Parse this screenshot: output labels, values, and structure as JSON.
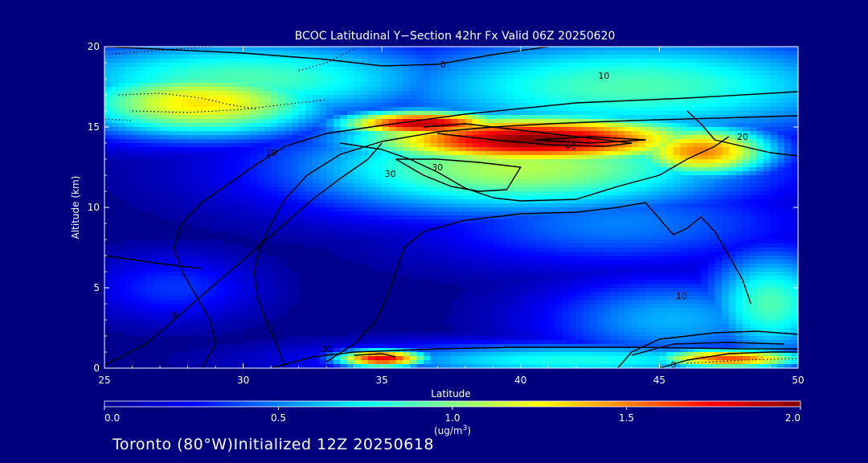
{
  "chart_data": {
    "type": "heatmap",
    "title": "BCOC Latitudinal Y−Section 42hr  Fx Valid 06Z 20250620",
    "xlabel": "Latitude",
    "ylabel": "Altitude (km)",
    "xlim": [
      25,
      50
    ],
    "ylim": [
      0,
      20
    ],
    "x_ticks": [
      25,
      30,
      35,
      40,
      45,
      50
    ],
    "y_ticks": [
      0,
      5,
      10,
      15,
      20
    ],
    "colorbar": {
      "range": [
        0.0,
        2.0
      ],
      "ticks": [
        "0.0",
        "0.5",
        "1.0",
        "1.5",
        "2.0"
      ],
      "unit_label": "(ug/m",
      "unit_sup": "3",
      "unit_close": ")",
      "colors": [
        "#00008f",
        "#0000ff",
        "#0080ff",
        "#00ffff",
        "#80ff80",
        "#ffff00",
        "#ff8000",
        "#ff0000",
        "#800000"
      ]
    },
    "color_field": {
      "description_of_features": "BCOC concentration plumes (ug/m3) vs latitude and altitude",
      "features": [
        {
          "lat": 40.5,
          "alt": 14.2,
          "value": 2.0,
          "sigma_lat": 4.5,
          "sigma_alt": 1.1
        },
        {
          "lat": 36.5,
          "alt": 15.2,
          "value": 1.9,
          "sigma_lat": 2.2,
          "sigma_alt": 0.6
        },
        {
          "lat": 46.5,
          "alt": 13.5,
          "value": 1.5,
          "sigma_lat": 2.0,
          "sigma_alt": 1.2
        },
        {
          "lat": 40.0,
          "alt": 12.5,
          "value": 1.1,
          "sigma_lat": 6.0,
          "sigma_alt": 2.2
        },
        {
          "lat": 28.5,
          "alt": 16.5,
          "value": 1.3,
          "sigma_lat": 3.5,
          "sigma_alt": 1.6
        },
        {
          "lat": 30.0,
          "alt": 18.0,
          "value": 0.9,
          "sigma_lat": 6.0,
          "sigma_alt": 2.0
        },
        {
          "lat": 44.0,
          "alt": 17.5,
          "value": 0.9,
          "sigma_lat": 7.0,
          "sigma_alt": 2.5
        },
        {
          "lat": 35.0,
          "alt": 0.6,
          "value": 1.8,
          "sigma_lat": 1.2,
          "sigma_alt": 0.4
        },
        {
          "lat": 47.5,
          "alt": 0.6,
          "value": 1.6,
          "sigma_lat": 2.0,
          "sigma_alt": 0.45
        },
        {
          "lat": 42.0,
          "alt": 0.5,
          "value": 0.8,
          "sigma_lat": 6.0,
          "sigma_alt": 0.8
        },
        {
          "lat": 49.0,
          "alt": 4.0,
          "value": 0.9,
          "sigma_lat": 1.8,
          "sigma_alt": 2.5
        },
        {
          "lat": 45.5,
          "alt": 3.0,
          "value": 0.6,
          "sigma_lat": 3.5,
          "sigma_alt": 2.0
        },
        {
          "lat": 27.5,
          "alt": 5.0,
          "value": 0.35,
          "sigma_lat": 2.2,
          "sigma_alt": 1.5
        },
        {
          "lat": 43.5,
          "alt": 9.0,
          "value": 0.5,
          "sigma_lat": 5.0,
          "sigma_alt": 2.0
        }
      ]
    },
    "contour_labels": [
      {
        "text": "0",
        "lat": 37.2,
        "alt": 18.9
      },
      {
        "text": "10",
        "lat": 43.0,
        "alt": 18.2
      },
      {
        "text": "20",
        "lat": 48.0,
        "alt": 14.4
      },
      {
        "text": "40",
        "lat": 41.8,
        "alt": 13.8
      },
      {
        "text": "30",
        "lat": 37.0,
        "alt": 12.5
      },
      {
        "text": "30",
        "lat": 35.3,
        "alt": 12.1
      },
      {
        "text": "10",
        "lat": 31.0,
        "alt": 13.4
      },
      {
        "text": "0",
        "lat": 27.5,
        "alt": 3.3
      },
      {
        "text": "10",
        "lat": 45.8,
        "alt": 4.5
      },
      {
        "text": "0",
        "lat": 45.5,
        "alt": 0.2
      },
      {
        "text": "30",
        "lat": 33.0,
        "alt": 1.2
      }
    ],
    "contours": [
      [
        [
          25,
          0.2
        ],
        [
          26.5,
          1.5
        ],
        [
          27.5,
          3
        ],
        [
          28.5,
          4.5
        ],
        [
          29.5,
          6
        ],
        [
          30.5,
          7.5
        ],
        [
          31.5,
          9
        ],
        [
          32.5,
          10.5
        ],
        [
          33.5,
          11.8
        ],
        [
          34.5,
          13
        ],
        [
          35,
          14
        ]
      ],
      [
        [
          28.5,
          0
        ],
        [
          29,
          1.5
        ],
        [
          28.8,
          3
        ],
        [
          28.3,
          4.5
        ],
        [
          27.8,
          6
        ],
        [
          27.5,
          7.5
        ],
        [
          27.8,
          9
        ],
        [
          28.5,
          10.3
        ],
        [
          29.5,
          11.5
        ],
        [
          30.5,
          12.7
        ],
        [
          31.5,
          13.8
        ],
        [
          33,
          14.6
        ],
        [
          35,
          15.1
        ],
        [
          38,
          15.8
        ],
        [
          42,
          16.5
        ],
        [
          46,
          16.8
        ],
        [
          50,
          17.2
        ]
      ],
      [
        [
          31.5,
          0
        ],
        [
          31.2,
          1.5
        ],
        [
          30.8,
          3
        ],
        [
          30.5,
          4.5
        ],
        [
          30.4,
          6
        ],
        [
          30.6,
          7.5
        ],
        [
          31,
          9
        ],
        [
          31.5,
          10.5
        ],
        [
          32.3,
          12
        ],
        [
          33.5,
          13.3
        ],
        [
          35,
          14.1
        ],
        [
          37,
          14.7
        ],
        [
          39,
          15
        ],
        [
          41,
          15.2
        ],
        [
          44,
          15.4
        ],
        [
          48,
          15.6
        ],
        [
          50,
          15.7
        ]
      ],
      [
        [
          33,
          0.4
        ],
        [
          34,
          1.5
        ],
        [
          34.8,
          3
        ],
        [
          35.2,
          4.5
        ],
        [
          35.5,
          6
        ],
        [
          35.8,
          7.5
        ],
        [
          36.5,
          8.5
        ],
        [
          38,
          9.2
        ],
        [
          40,
          9.6
        ],
        [
          42,
          9.7
        ],
        [
          43.5,
          10
        ],
        [
          44.5,
          10.3
        ],
        [
          45,
          9.3
        ],
        [
          45.5,
          8.3
        ],
        [
          46,
          8.7
        ],
        [
          46.5,
          9.4
        ],
        [
          47,
          8.5
        ],
        [
          47.5,
          7
        ],
        [
          48,
          5.5
        ],
        [
          48.3,
          4
        ]
      ],
      [
        [
          25,
          7
        ],
        [
          27,
          6.5
        ],
        [
          28.5,
          6.2
        ]
      ],
      [
        [
          25,
          20
        ],
        [
          30,
          19.6
        ],
        [
          33,
          19.2
        ],
        [
          35,
          18.8
        ],
        [
          37,
          18.9
        ],
        [
          39,
          19.5
        ],
        [
          41,
          20
        ]
      ],
      [
        [
          33.5,
          14
        ],
        [
          35,
          13.6
        ],
        [
          36,
          13
        ],
        [
          37,
          12.2
        ],
        [
          38,
          11.2
        ],
        [
          39,
          10.6
        ],
        [
          40,
          10.4
        ],
        [
          42,
          10.5
        ],
        [
          43.5,
          11.3
        ],
        [
          45,
          12
        ],
        [
          46,
          13
        ],
        [
          47,
          13.8
        ],
        [
          47.5,
          14.4
        ]
      ],
      [
        [
          35.5,
          13
        ],
        [
          36.5,
          12
        ],
        [
          37.5,
          11.3
        ],
        [
          38.5,
          11
        ],
        [
          39.5,
          11.1
        ],
        [
          40,
          12.5
        ],
        [
          38.5,
          12.8
        ],
        [
          37,
          13
        ],
        [
          35.5,
          13
        ]
      ],
      [
        [
          36.5,
          15
        ],
        [
          38,
          15.2
        ],
        [
          40.5,
          14.7
        ],
        [
          42.5,
          14.3
        ],
        [
          44,
          14
        ],
        [
          43,
          13.8
        ],
        [
          41,
          13.9
        ],
        [
          39,
          14.2
        ],
        [
          37,
          14.6
        ]
      ],
      [
        [
          40.5,
          14.2
        ],
        [
          42.5,
          14
        ],
        [
          44.5,
          14.2
        ],
        [
          42.5,
          14.4
        ],
        [
          40.5,
          14.2
        ]
      ],
      [
        [
          46,
          16
        ],
        [
          46.5,
          15.2
        ],
        [
          47,
          14.2
        ],
        [
          48,
          13.8
        ],
        [
          49,
          13.4
        ],
        [
          50,
          13.2
        ]
      ],
      [
        [
          31,
          0
        ],
        [
          32.5,
          0.7
        ],
        [
          34,
          1
        ],
        [
          35.5,
          1.1
        ],
        [
          37,
          1.2
        ],
        [
          40,
          1.3
        ],
        [
          44,
          1.3
        ],
        [
          48,
          1.2
        ],
        [
          50,
          1.2
        ]
      ],
      [
        [
          43.5,
          0
        ],
        [
          44,
          1
        ],
        [
          45,
          1.8
        ],
        [
          47,
          2.2
        ],
        [
          48.5,
          2.3
        ],
        [
          50,
          2.1
        ]
      ],
      [
        [
          45,
          0
        ],
        [
          46,
          0.5
        ],
        [
          47.5,
          0.9
        ],
        [
          49,
          1
        ],
        [
          50,
          1
        ]
      ],
      [
        [
          44,
          0.8
        ],
        [
          45.5,
          1.5
        ],
        [
          47.5,
          1.6
        ],
        [
          49.5,
          1.5
        ]
      ],
      [
        [
          34,
          0.8
        ],
        [
          35,
          0.9
        ],
        [
          35.5,
          0.7
        ]
      ]
    ],
    "dotted_contours": [
      [
        [
          25,
          19.5
        ],
        [
          26.5,
          19.7
        ],
        [
          28,
          19.9
        ],
        [
          29,
          20
        ]
      ],
      [
        [
          25.5,
          17
        ],
        [
          27,
          17.1
        ],
        [
          28.5,
          16.8
        ],
        [
          29.5,
          16.4
        ],
        [
          30.5,
          16.1
        ]
      ],
      [
        [
          26,
          16
        ],
        [
          28,
          15.9
        ],
        [
          30,
          16.1
        ],
        [
          31.5,
          16.4
        ],
        [
          33,
          16.7
        ]
      ],
      [
        [
          25,
          15.5
        ],
        [
          26,
          15.4
        ]
      ],
      [
        [
          32,
          18.5
        ],
        [
          33,
          19
        ],
        [
          33.7,
          19.6
        ],
        [
          34.2,
          20
        ]
      ],
      [
        [
          46,
          0.3
        ],
        [
          48,
          0.5
        ],
        [
          50,
          0.6
        ]
      ]
    ],
    "footer_text": "Toronto (80°W)Initialized 12Z 20250618"
  }
}
